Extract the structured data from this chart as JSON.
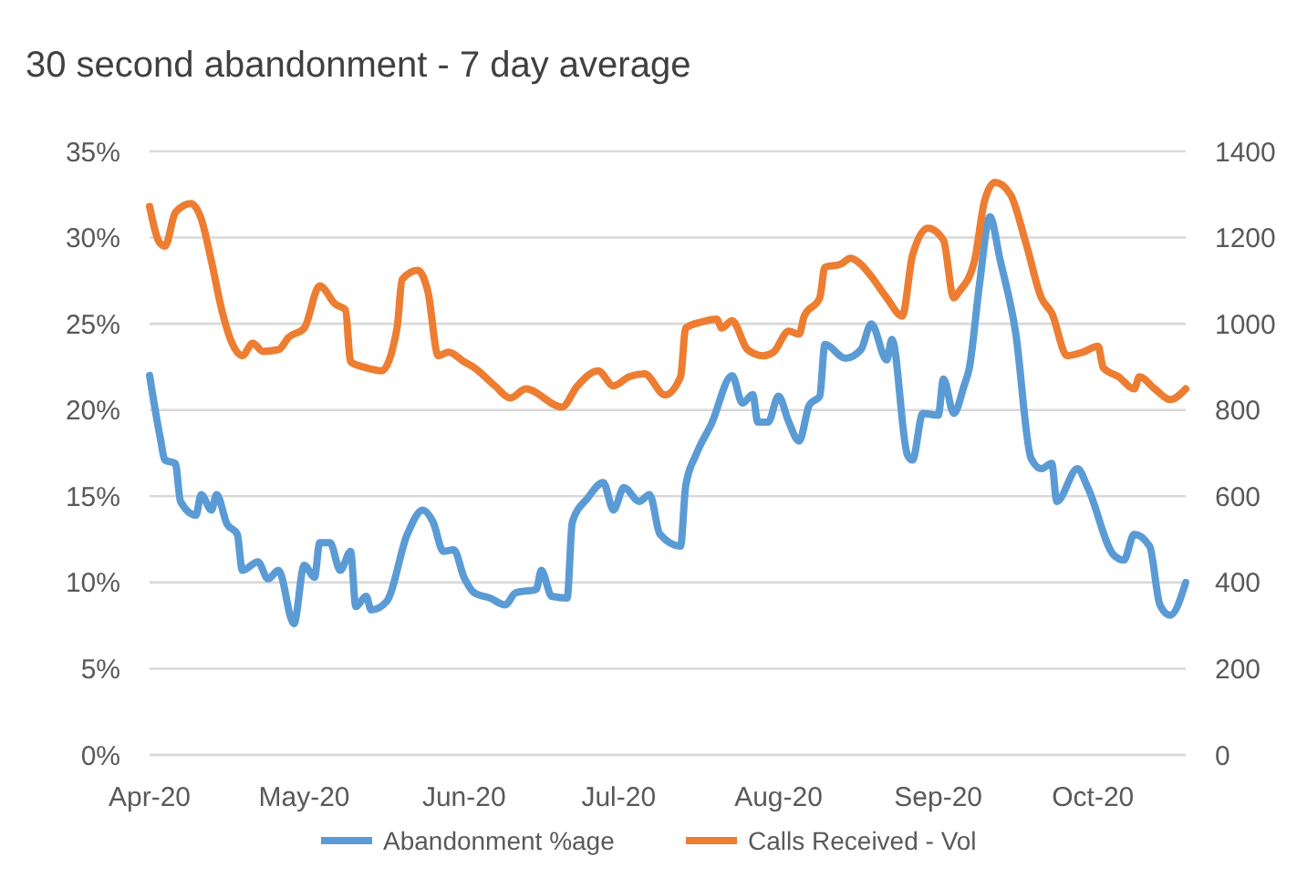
{
  "chart_data": {
    "type": "line",
    "title": "30 second abandonment  - 7 day average",
    "xlim": [
      "2020-04-01",
      "2020-10-19"
    ],
    "xticks": [
      {
        "value": "2020-04-01",
        "label": "Apr-20"
      },
      {
        "value": "2020-05-01",
        "label": "May-20"
      },
      {
        "value": "2020-06-01",
        "label": "Jun-20"
      },
      {
        "value": "2020-07-01",
        "label": "Jul-20"
      },
      {
        "value": "2020-08-01",
        "label": "Aug-20"
      },
      {
        "value": "2020-09-01",
        "label": "Sep-20"
      },
      {
        "value": "2020-10-01",
        "label": "Oct-20"
      }
    ],
    "ylim": [
      0,
      35
    ],
    "yticks": [
      {
        "value": 0,
        "label": "0%"
      },
      {
        "value": 5,
        "label": "5%"
      },
      {
        "value": 10,
        "label": "10%"
      },
      {
        "value": 15,
        "label": "15%"
      },
      {
        "value": 20,
        "label": "20%"
      },
      {
        "value": 25,
        "label": "25%"
      },
      {
        "value": 30,
        "label": "30%"
      },
      {
        "value": 35,
        "label": "35%"
      }
    ],
    "y2lim": [
      0,
      1400
    ],
    "y2ticks": [
      0,
      200,
      400,
      600,
      800,
      1000,
      1200,
      1400
    ],
    "grid": "y",
    "legend": "bottom",
    "marker": "none",
    "line_style": "solid",
    "series": [
      {
        "name": "Abandonment %age",
        "color": "#5b9bd5",
        "axis": "y",
        "x": [
          "2020-04-01",
          "2020-04-03",
          "2020-04-04",
          "2020-04-06",
          "2020-04-07",
          "2020-04-10",
          "2020-04-11",
          "2020-04-13",
          "2020-04-14",
          "2020-04-16",
          "2020-04-18",
          "2020-04-19",
          "2020-04-22",
          "2020-04-24",
          "2020-04-26",
          "2020-04-29",
          "2020-05-01",
          "2020-05-03",
          "2020-05-04",
          "2020-05-06",
          "2020-05-08",
          "2020-05-10",
          "2020-05-11",
          "2020-05-13",
          "2020-05-14",
          "2020-05-17",
          "2020-05-21",
          "2020-05-24",
          "2020-05-26",
          "2020-05-28",
          "2020-05-30",
          "2020-06-01",
          "2020-06-03",
          "2020-06-06",
          "2020-06-09",
          "2020-06-11",
          "2020-06-15",
          "2020-06-16",
          "2020-06-18",
          "2020-06-21",
          "2020-06-22",
          "2020-06-25",
          "2020-06-28",
          "2020-06-30",
          "2020-07-02",
          "2020-07-05",
          "2020-07-07",
          "2020-07-09",
          "2020-07-13",
          "2020-07-14",
          "2020-07-16",
          "2020-07-19",
          "2020-07-23",
          "2020-07-25",
          "2020-07-27",
          "2020-07-28",
          "2020-07-30",
          "2020-08-01",
          "2020-08-03",
          "2020-08-05",
          "2020-08-07",
          "2020-08-09",
          "2020-08-10",
          "2020-08-14",
          "2020-08-17",
          "2020-08-19",
          "2020-08-22",
          "2020-08-23",
          "2020-08-26",
          "2020-08-27",
          "2020-08-29",
          "2020-09-01",
          "2020-09-02",
          "2020-09-04",
          "2020-09-06",
          "2020-09-07",
          "2020-09-09",
          "2020-09-11",
          "2020-09-13",
          "2020-09-16",
          "2020-09-19",
          "2020-09-21",
          "2020-09-23",
          "2020-09-24",
          "2020-09-28",
          "2020-09-30",
          "2020-10-05",
          "2020-10-07",
          "2020-10-09",
          "2020-10-12",
          "2020-10-14",
          "2020-10-16",
          "2020-10-19"
        ],
        "values": [
          22.0,
          18.5,
          17.1,
          16.9,
          14.7,
          13.9,
          15.1,
          14.2,
          15.1,
          13.4,
          12.8,
          10.7,
          11.2,
          10.2,
          10.7,
          7.6,
          11.0,
          10.3,
          12.3,
          12.3,
          10.7,
          11.8,
          8.6,
          9.2,
          8.4,
          8.9,
          12.8,
          14.2,
          13.5,
          11.8,
          11.9,
          10.3,
          9.4,
          9.1,
          8.7,
          9.4,
          9.6,
          10.7,
          9.2,
          9.1,
          13.5,
          14.9,
          15.8,
          14.2,
          15.5,
          14.7,
          15.1,
          12.8,
          12.1,
          15.6,
          17.4,
          19.2,
          22.0,
          20.4,
          20.9,
          19.3,
          19.3,
          20.8,
          19.3,
          18.2,
          20.3,
          20.8,
          23.8,
          23.0,
          23.5,
          25.0,
          22.9,
          24.1,
          17.4,
          17.1,
          19.8,
          19.7,
          21.8,
          19.8,
          21.4,
          22.4,
          27.3,
          31.2,
          28.7,
          24.5,
          17.2,
          16.6,
          16.9,
          14.7,
          16.6,
          15.5,
          11.6,
          11.3,
          12.8,
          12.1,
          8.7,
          8.1,
          10.0
        ]
      },
      {
        "name": "Calls Received - Vol",
        "color": "#ed7d31",
        "axis": "y2",
        "x": [
          "2020-04-01",
          "2020-04-03",
          "2020-04-04",
          "2020-04-06",
          "2020-04-09",
          "2020-04-11",
          "2020-04-13",
          "2020-04-15",
          "2020-04-17",
          "2020-04-19",
          "2020-04-21",
          "2020-04-23",
          "2020-04-26",
          "2020-04-28",
          "2020-05-01",
          "2020-05-04",
          "2020-05-07",
          "2020-05-09",
          "2020-05-10",
          "2020-05-13",
          "2020-05-16",
          "2020-05-19",
          "2020-05-20",
          "2020-05-23",
          "2020-05-25",
          "2020-05-27",
          "2020-05-29",
          "2020-06-01",
          "2020-06-03",
          "2020-06-07",
          "2020-06-10",
          "2020-06-13",
          "2020-06-20",
          "2020-06-23",
          "2020-06-27",
          "2020-06-30",
          "2020-07-03",
          "2020-07-06",
          "2020-07-10",
          "2020-07-13",
          "2020-07-14",
          "2020-07-17",
          "2020-07-20",
          "2020-07-21",
          "2020-07-23",
          "2020-07-26",
          "2020-07-29",
          "2020-07-31",
          "2020-08-03",
          "2020-08-05",
          "2020-08-06",
          "2020-08-09",
          "2020-08-10",
          "2020-08-13",
          "2020-08-15",
          "2020-08-17",
          "2020-08-19",
          "2020-08-22",
          "2020-08-25",
          "2020-08-27",
          "2020-08-30",
          "2020-09-02",
          "2020-09-04",
          "2020-09-05",
          "2020-09-08",
          "2020-09-10",
          "2020-09-12",
          "2020-09-15",
          "2020-09-18",
          "2020-09-21",
          "2020-09-23",
          "2020-09-26",
          "2020-09-29",
          "2020-10-02",
          "2020-10-03",
          "2020-10-06",
          "2020-10-09",
          "2020-10-10",
          "2020-10-13",
          "2020-10-16",
          "2020-10-19"
        ],
        "values": [
          1272,
          1187,
          1180,
          1258,
          1279,
          1244,
          1145,
          1032,
          955,
          926,
          955,
          936,
          940,
          969,
          990,
          1088,
          1046,
          1032,
          912,
          898,
          891,
          990,
          1103,
          1124,
          1074,
          926,
          934,
          912,
          898,
          856,
          828,
          849,
          807,
          856,
          891,
          856,
          877,
          884,
          835,
          877,
          990,
          1004,
          1011,
          990,
          1007,
          940,
          926,
          934,
          983,
          976,
          1018,
          1060,
          1131,
          1138,
          1152,
          1138,
          1110,
          1060,
          1018,
          1159,
          1222,
          1194,
          1060,
          1074,
          1145,
          1286,
          1328,
          1300,
          1187,
          1060,
          1025,
          926,
          934,
          948,
          898,
          877,
          849,
          877,
          849,
          824,
          849
        ]
      }
    ]
  }
}
